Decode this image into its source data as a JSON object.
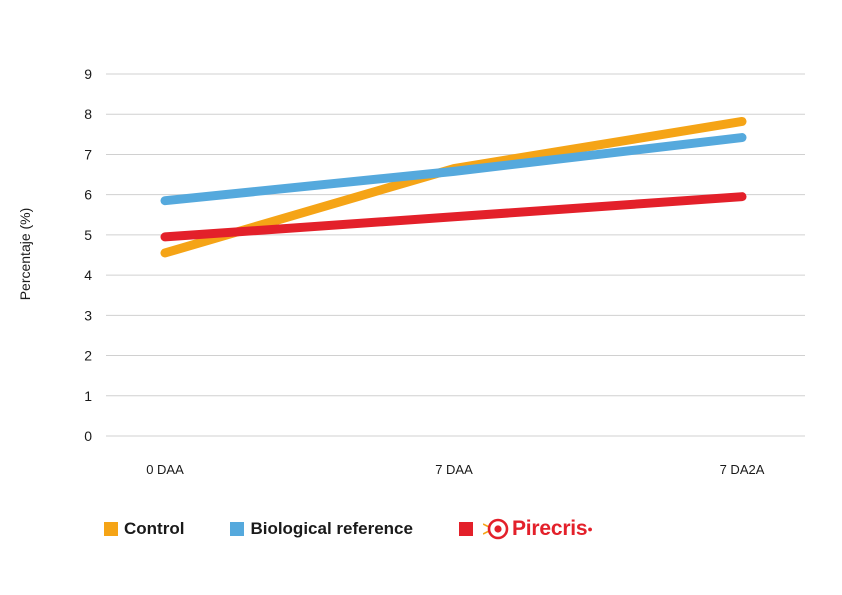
{
  "chart_data": {
    "type": "line",
    "categories": [
      "0 DAA",
      "7 DAA",
      "7 DA2A"
    ],
    "ylabel": "Percentaje (%)",
    "xlabel": "",
    "ylim": [
      0,
      9
    ],
    "yticks": [
      "0",
      "1",
      "2",
      "3",
      "4",
      "5",
      "6",
      "7",
      "8",
      "9"
    ],
    "grid": true,
    "legend_position": "bottom-left",
    "series": [
      {
        "name": "Control",
        "color": "#f5a416",
        "values": [
          4.55,
          6.65,
          7.82
        ]
      },
      {
        "name": "Biological reference",
        "color": "#55a9dd",
        "values": [
          5.85,
          6.58,
          7.42
        ]
      },
      {
        "name": "Pirecris",
        "color": "#e3202a",
        "values": [
          4.95,
          5.45,
          5.95
        ]
      }
    ]
  },
  "legend": {
    "items": [
      {
        "label": "Control",
        "color": "#f5a416"
      },
      {
        "label": "Biological reference",
        "color": "#55a9dd"
      },
      {
        "label": "Pirecris",
        "color": "#e3202a",
        "logo": "pirecris-target-logo"
      }
    ]
  }
}
